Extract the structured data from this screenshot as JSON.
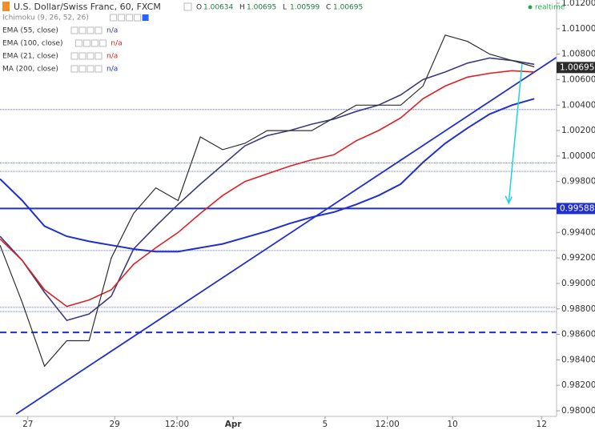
{
  "chart_data": {
    "type": "line",
    "title": "U.S. Dollar/Swiss Franc, 60, FXCM",
    "ohlc": [
      {
        "label": "O",
        "value": 1.00634
      },
      {
        "label": "H",
        "value": 1.00695
      },
      {
        "label": "L",
        "value": 1.00599
      },
      {
        "label": "C",
        "value": 1.00695
      }
    ],
    "status": "realtime",
    "x": [
      0,
      4,
      8,
      12,
      16,
      20,
      24,
      28,
      32,
      36,
      40,
      44,
      48,
      52,
      56,
      60,
      64,
      68,
      72,
      76,
      80,
      84,
      88,
      92,
      96
    ],
    "xlim": [
      0,
      100
    ],
    "xticks": [
      {
        "value": 5,
        "label": "27"
      },
      {
        "value": 20.6,
        "label": "29"
      },
      {
        "value": 31.8,
        "label": "12:00"
      },
      {
        "value": 41.9,
        "label": "Apr"
      },
      {
        "value": 58.4,
        "label": "5"
      },
      {
        "value": 69.6,
        "label": "12:00"
      },
      {
        "value": 81.3,
        "label": "10"
      },
      {
        "value": 97.3,
        "label": "12"
      }
    ],
    "ylim": [
      0.98,
      1.012
    ],
    "yticks": [
      {
        "value": 0.98,
        "label": "0.98000"
      },
      {
        "value": 0.982,
        "label": "0.98200"
      },
      {
        "value": 0.984,
        "label": "0.98400"
      },
      {
        "value": 0.986,
        "label": "0.98600"
      },
      {
        "value": 0.988,
        "label": "0.98800"
      },
      {
        "value": 0.99,
        "label": "0.99000"
      },
      {
        "value": 0.992,
        "label": "0.99200"
      },
      {
        "value": 0.994,
        "label": "0.99400"
      },
      {
        "value": 0.996,
        "label": "0.99600"
      },
      {
        "value": 0.998,
        "label": "0.99800"
      },
      {
        "value": 1.0,
        "label": "1.00000"
      },
      {
        "value": 1.002,
        "label": "1.00200"
      },
      {
        "value": 1.004,
        "label": "1.00400"
      },
      {
        "value": 1.006,
        "label": "1.00600"
      },
      {
        "value": 1.008,
        "label": "1.00800"
      },
      {
        "value": 1.01,
        "label": "1.01000"
      },
      {
        "value": 1.012,
        "label": "1.01200"
      }
    ],
    "price": {
      "color": "#2e2e2e",
      "values": [
        0.993,
        0.9885,
        0.9835,
        0.9855,
        0.9855,
        0.992,
        0.9955,
        0.9975,
        0.9965,
        1.0015,
        1.0005,
        1.001,
        1.002,
        1.002,
        1.002,
        1.003,
        1.004,
        1.004,
        1.004,
        1.0055,
        1.0095,
        1.009,
        1.008,
        1.0075,
        1.007
      ]
    },
    "series": [
      {
        "name": "Ichimoku (9, 26, 52, 26)"
      },
      {
        "name": "EMA (55, close)",
        "status": "n/a",
        "color": "#3b3b80",
        "values": [
          0.9937,
          0.9918,
          0.9893,
          0.9871,
          0.9876,
          0.989,
          0.9927,
          0.9945,
          0.9962,
          0.9978,
          0.9993,
          1.0008,
          1.0016,
          1.002,
          1.0025,
          1.0029,
          1.0035,
          1.004,
          1.0048,
          1.006,
          1.0066,
          1.0073,
          1.0077,
          1.0075,
          1.0072
        ]
      },
      {
        "name": "EMA (100, close)",
        "status": "n/a",
        "color": "#e02020",
        "values": [
          0.9935,
          0.9918,
          0.9895,
          0.9882,
          0.9887,
          0.9895,
          0.9915,
          0.9928,
          0.994,
          0.9955,
          0.9969,
          0.998,
          0.9986,
          0.9992,
          0.9997,
          1.0001,
          1.0012,
          1.002,
          1.003,
          1.0045,
          1.0055,
          1.0062,
          1.0065,
          1.0067,
          1.0066
        ]
      },
      {
        "name": "EMA (21, close)",
        "status": "n/a",
        "color": "#e02020"
      },
      {
        "name": "MA (200, close)",
        "status": "n/a",
        "color": "#1f2fd0",
        "values": [
          0.9982,
          0.9965,
          0.9945,
          0.9937,
          0.9933,
          0.993,
          0.9927,
          0.9925,
          0.9925,
          0.9928,
          0.9931,
          0.9936,
          0.9941,
          0.9947,
          0.9952,
          0.9956,
          0.9962,
          0.9969,
          0.9978,
          0.9995,
          1.001,
          1.0022,
          1.0033,
          1.004,
          1.0045
        ]
      }
    ],
    "levels": [
      {
        "value": 0.99588,
        "style": "solid",
        "color": "#1f2fd0"
      },
      {
        "value": 0.98615,
        "style": "dashed",
        "color": "#1f2fd0"
      },
      {
        "value": 1.00365,
        "style": "dotted",
        "color": "#3f51d0"
      },
      {
        "value": 0.99945,
        "style": "dotted",
        "color": "#3f51d0"
      },
      {
        "value": 0.9988,
        "style": "dotted",
        "color": "#3f51d0"
      },
      {
        "value": 0.99258,
        "style": "dotted",
        "color": "#3f51d0"
      },
      {
        "value": 0.98812,
        "style": "dotted",
        "color": "#3f51d0"
      },
      {
        "value": 0.98779,
        "style": "dotted",
        "color": "#3f51d0"
      }
    ],
    "trendline": {
      "color": "#1f2fd0",
      "x": [
        2.9,
        100
      ],
      "y": [
        0.97975,
        1.00775
      ]
    },
    "arrow": {
      "color": "#19d3e6",
      "x": [
        93.8,
        91.4
      ],
      "y": [
        1.0072,
        0.9963
      ]
    },
    "markers": [
      {
        "value": 1.00695,
        "color": "#2b2b2b"
      },
      {
        "value": 0.99588,
        "color": "#1f2fd0"
      }
    ]
  }
}
